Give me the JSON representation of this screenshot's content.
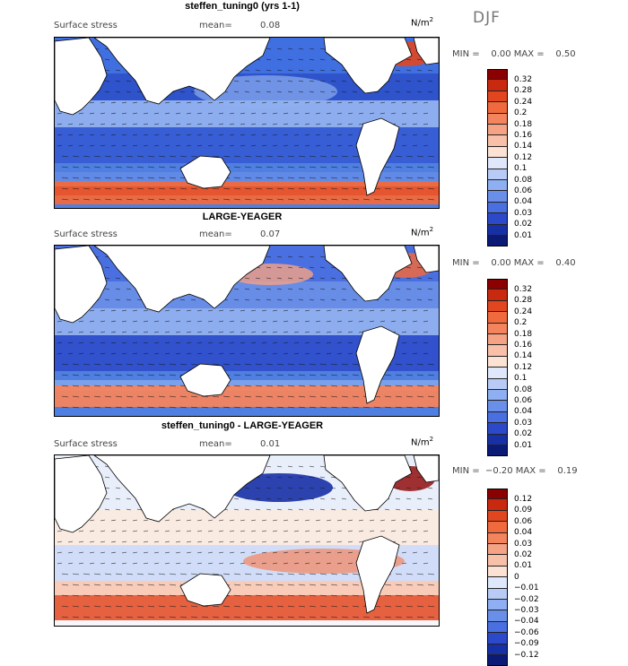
{
  "header": {
    "season": "DJF"
  },
  "panels": [
    {
      "title": "steffen_tuning0 (yrs 1-1)",
      "field_label": "Surface stress",
      "mean_label": "mean=",
      "mean_value": "0.08",
      "unit_base": "N/m",
      "unit_exp": "2",
      "stats": "MIN =    0.00 MAX =    0.50",
      "colorbar": {
        "ticks": [
          "0.32",
          "0.28",
          "0.24",
          "0.2",
          "0.18",
          "0.16",
          "0.14",
          "0.12",
          "0.1",
          "0.08",
          "0.06",
          "0.04",
          "0.03",
          "0.02",
          "0.01"
        ],
        "colors": [
          "#8b0000",
          "#c8290f",
          "#e2461f",
          "#f06a3d",
          "#f4845d",
          "#f6a285",
          "#f8c0a8",
          "#fbe2d2",
          "#dfe8fb",
          "#b7cbf6",
          "#8eaff1",
          "#6a8fe8",
          "#4a6fe0",
          "#2c49c9",
          "#1730a6",
          "#0a1a75"
        ]
      },
      "chart_data": {
        "type": "heatmap",
        "title": "steffen_tuning0 (yrs 1-1)",
        "subtitle": "Surface stress",
        "units": "N/m2",
        "mean": 0.08,
        "min": 0.0,
        "max": 0.5,
        "color_levels": [
          0.01,
          0.02,
          0.03,
          0.04,
          0.06,
          0.08,
          0.1,
          0.12,
          0.14,
          0.16,
          0.18,
          0.2,
          0.24,
          0.28,
          0.32
        ]
      }
    },
    {
      "title": "LARGE-YEAGER",
      "field_label": "Surface stress",
      "mean_label": "mean=",
      "mean_value": "0.07",
      "unit_base": "N/m",
      "unit_exp": "2",
      "stats": "MIN =    0.00 MAX =    0.40",
      "colorbar": {
        "ticks": [
          "0.32",
          "0.28",
          "0.24",
          "0.2",
          "0.18",
          "0.16",
          "0.14",
          "0.12",
          "0.1",
          "0.08",
          "0.06",
          "0.04",
          "0.03",
          "0.02",
          "0.01"
        ],
        "colors": [
          "#8b0000",
          "#c8290f",
          "#e2461f",
          "#f06a3d",
          "#f4845d",
          "#f6a285",
          "#f8c0a8",
          "#fbe2d2",
          "#dfe8fb",
          "#b7cbf6",
          "#8eaff1",
          "#6a8fe8",
          "#4a6fe0",
          "#2c49c9",
          "#1730a6",
          "#0a1a75"
        ]
      },
      "chart_data": {
        "type": "heatmap",
        "title": "LARGE-YEAGER",
        "subtitle": "Surface stress",
        "units": "N/m2",
        "mean": 0.07,
        "min": 0.0,
        "max": 0.4,
        "color_levels": [
          0.01,
          0.02,
          0.03,
          0.04,
          0.06,
          0.08,
          0.1,
          0.12,
          0.14,
          0.16,
          0.18,
          0.2,
          0.24,
          0.28,
          0.32
        ]
      }
    },
    {
      "title": "steffen_tuning0 - LARGE-YEAGER",
      "field_label": "Surface stress",
      "mean_label": "mean=",
      "mean_value": "0.01",
      "unit_base": "N/m",
      "unit_exp": "2",
      "stats": "MIN =  −0.20 MAX =    0.19",
      "colorbar": {
        "ticks": [
          "0.12",
          "0.09",
          "0.06",
          "0.04",
          "0.03",
          "0.02",
          "0.01",
          "0",
          "−0.01",
          "−0.02",
          "−0.03",
          "−0.04",
          "−0.06",
          "−0.09",
          "−0.12"
        ],
        "colors": [
          "#8b0000",
          "#c8290f",
          "#e2461f",
          "#f06a3d",
          "#f4845d",
          "#f6a285",
          "#f8c0a8",
          "#fbe2d2",
          "#dfe8fb",
          "#b7cbf6",
          "#8eaff1",
          "#6a8fe8",
          "#4a6fe0",
          "#2c49c9",
          "#1730a6",
          "#0a1a75"
        ]
      },
      "chart_data": {
        "type": "heatmap",
        "title": "steffen_tuning0 - LARGE-YEAGER",
        "subtitle": "Surface stress",
        "units": "N/m2",
        "mean": 0.01,
        "min": -0.2,
        "max": 0.19,
        "color_levels": [
          -0.12,
          -0.09,
          -0.06,
          -0.04,
          -0.03,
          -0.02,
          -0.01,
          0,
          0.01,
          0.02,
          0.03,
          0.04,
          0.06,
          0.09,
          0.12
        ]
      }
    }
  ]
}
